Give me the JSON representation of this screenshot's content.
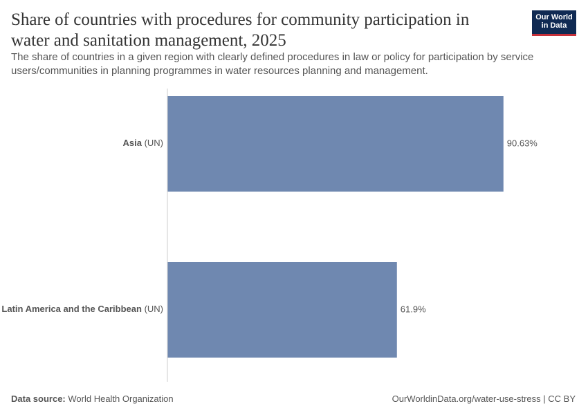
{
  "chart_data": {
    "type": "bar",
    "orientation": "horizontal",
    "title": "Share of countries with procedures for community participation in water and sanitation management, 2025",
    "subtitle": "The share of countries in a given region with clearly defined procedures in law or policy for participation by service users/communities in planning programmes in water resources planning and management.",
    "categories": [
      "Asia",
      "Latin America and the Caribbean"
    ],
    "category_notes": [
      "(UN)",
      "(UN)"
    ],
    "values": [
      90.63,
      61.9
    ],
    "value_labels": [
      "90.63%",
      "61.9%"
    ],
    "color": "#6f88b0",
    "xlim": [
      0,
      100
    ],
    "source_label": "Data source:",
    "source": "World Health Organization",
    "footer_right": "OurWorldinData.org/water-use-stress | CC BY",
    "logo": [
      "Our World",
      "in Data"
    ]
  }
}
